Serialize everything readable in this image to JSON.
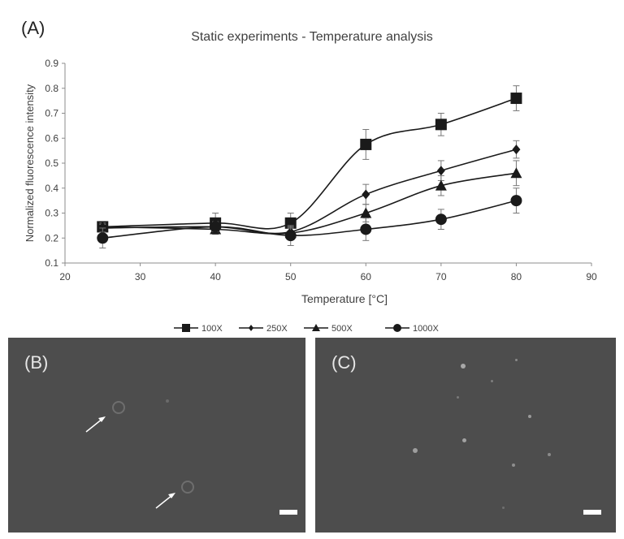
{
  "panels": {
    "a_label": "(A)",
    "b_label": "(B)",
    "c_label": "(C)"
  },
  "chart_data": {
    "type": "line",
    "title": "Static experiments - Temperature  analysis",
    "xlabel": "Temperature [°C]",
    "ylabel": "Normalized fluorescence intensity",
    "xlim": [
      20,
      90
    ],
    "ylim": [
      0.1,
      0.9
    ],
    "x_ticks": [
      "20",
      "30",
      "40",
      "50",
      "60",
      "70",
      "80",
      "90"
    ],
    "y_ticks": [
      "0.1",
      "0.2",
      "0.3",
      "0.4",
      "0.5",
      "0.6",
      "0.7",
      "0.8",
      "0.9"
    ],
    "x": [
      25,
      40,
      50,
      60,
      70,
      80
    ],
    "grid": false,
    "legend_position": "bottom",
    "series": [
      {
        "name": "100X",
        "marker": "square",
        "values": [
          0.245,
          0.26,
          0.26,
          0.575,
          0.655,
          0.76
        ],
        "errors": [
          0.02,
          0.04,
          0.04,
          0.06,
          0.045,
          0.05
        ]
      },
      {
        "name": "250X",
        "marker": "diamond",
        "values": [
          0.24,
          0.245,
          0.225,
          0.375,
          0.47,
          0.555
        ],
        "errors": [
          0.015,
          0.02,
          0.02,
          0.04,
          0.04,
          0.035
        ]
      },
      {
        "name": "500X",
        "marker": "triangle",
        "values": [
          0.245,
          0.235,
          0.22,
          0.3,
          0.41,
          0.46
        ],
        "errors": [
          0.015,
          0.02,
          0.02,
          0.035,
          0.04,
          0.05
        ]
      },
      {
        "name": "1000X",
        "marker": "circle",
        "values": [
          0.2,
          0.245,
          0.21,
          0.235,
          0.275,
          0.35
        ],
        "errors": [
          0.04,
          0.02,
          0.04,
          0.045,
          0.04,
          0.05
        ]
      }
    ],
    "line_color": "#1a1a1a",
    "axis_color": "#8c8c8c",
    "text_color": "#404040"
  },
  "micrographs": {
    "background": "#4d4d4d",
    "scale_bar_color": "#ffffff"
  }
}
